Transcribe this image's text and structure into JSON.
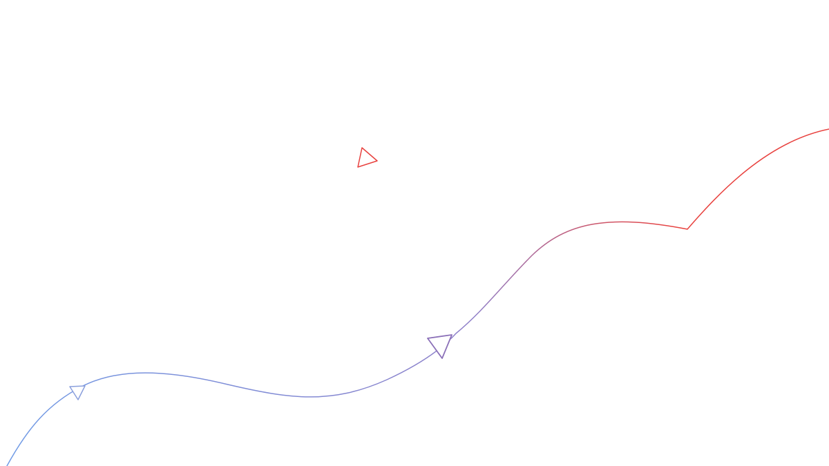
{
  "colors": {
    "background": "#ffffff",
    "gradient_start": "#6f9be6",
    "gradient_mid": "#8f7fc8",
    "gradient_end": "#e8413e",
    "floating_triangle": "#e8413e"
  },
  "icons": {
    "arrow_1": "triangle-outline-icon",
    "arrow_2": "triangle-outline-icon",
    "floating": "triangle-outline-icon"
  }
}
